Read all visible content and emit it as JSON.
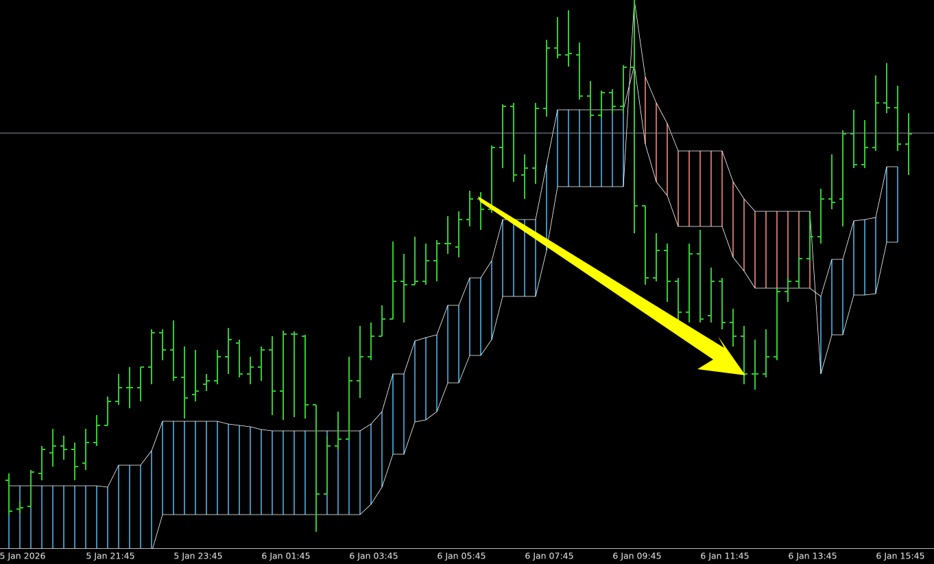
{
  "chart_data": {
    "type": "ohlc",
    "categories": [
      null,
      "5 Jan 2026",
      null,
      null,
      null,
      null,
      null,
      null,
      null,
      "5 Jan 21:45",
      null,
      null,
      null,
      null,
      null,
      null,
      null,
      "5 Jan 23:45",
      null,
      null,
      null,
      null,
      null,
      null,
      null,
      "6 Jan 01:45",
      null,
      null,
      null,
      null,
      null,
      null,
      null,
      "6 Jan 03:45",
      null,
      null,
      null,
      null,
      null,
      null,
      null,
      "6 Jan 05:45",
      null,
      null,
      null,
      null,
      null,
      null,
      null,
      "6 Jan 07:45",
      null,
      null,
      null,
      null,
      null,
      null,
      null,
      "6 Jan 09:45",
      null,
      null,
      null,
      null,
      null,
      null,
      null,
      "6 Jan 11:45",
      null,
      null,
      null,
      null,
      null,
      null,
      null,
      "6 Jan 13:45",
      null,
      null,
      null,
      null,
      null,
      null,
      null,
      "6 Jan 15:45",
      null
    ],
    "open": [
      100,
      58,
      62,
      110,
      140,
      150,
      145,
      125,
      155,
      180,
      215,
      235,
      235,
      265,
      315,
      290,
      250,
      225,
      240,
      245,
      280,
      300,
      255,
      265,
      290,
      230,
      313,
      310,
      210,
      80,
      150,
      160,
      245,
      280,
      310,
      335,
      390,
      385,
      390,
      420,
      445,
      440,
      480,
      510,
      495,
      585,
      645,
      545,
      555,
      642,
      730,
      720,
      720,
      660,
      632,
      665,
      645,
      702,
      500,
      395,
      435,
      390,
      345,
      430,
      340,
      390,
      330,
      310,
      255,
      255,
      280,
      375,
      390,
      423,
      455,
      510,
      510,
      605,
      560,
      585,
      650,
      643,
      590
    ],
    "high": [
      110,
      70,
      115,
      150,
      175,
      165,
      155,
      175,
      195,
      222,
      255,
      265,
      265,
      320,
      320,
      333,
      295,
      290,
      255,
      290,
      322,
      305,
      280,
      295,
      310,
      318,
      317,
      312,
      210,
      165,
      200,
      280,
      325,
      330,
      355,
      448,
      430,
      455,
      445,
      450,
      485,
      492,
      522,
      520,
      588,
      648,
      650,
      575,
      650,
      742,
      775,
      785,
      738,
      682,
      668,
      670,
      705,
      800,
      500,
      460,
      445,
      395,
      445,
      465,
      410,
      395,
      350,
      325,
      305,
      320,
      380,
      395,
      425,
      490,
      525,
      575,
      610,
      640,
      625,
      690,
      708,
      675,
      635
    ],
    "low": [
      50,
      52,
      60,
      100,
      120,
      130,
      100,
      115,
      150,
      180,
      210,
      205,
      215,
      240,
      275,
      245,
      190,
      215,
      230,
      240,
      255,
      250,
      240,
      245,
      195,
      188,
      192,
      190,
      25,
      80,
      145,
      160,
      220,
      275,
      310,
      335,
      330,
      385,
      385,
      390,
      430,
      425,
      470,
      465,
      490,
      555,
      535,
      510,
      532,
      630,
      715,
      703,
      655,
      628,
      628,
      635,
      635,
      460,
      385,
      390,
      360,
      330,
      330,
      330,
      330,
      320,
      295,
      240,
      232,
      250,
      275,
      360,
      380,
      420,
      445,
      495,
      470,
      555,
      555,
      580,
      635,
      580,
      545
    ],
    "close": [
      55,
      60,
      112,
      145,
      150,
      145,
      120,
      155,
      180,
      215,
      235,
      235,
      265,
      315,
      290,
      250,
      220,
      230,
      245,
      280,
      305,
      255,
      265,
      290,
      230,
      313,
      313,
      210,
      80,
      150,
      160,
      245,
      280,
      310,
      335,
      390,
      385,
      390,
      420,
      445,
      445,
      480,
      510,
      495,
      585,
      645,
      545,
      555,
      642,
      730,
      720,
      722,
      660,
      632,
      665,
      645,
      702,
      500,
      395,
      435,
      390,
      345,
      430,
      335,
      390,
      330,
      310,
      255,
      255,
      280,
      375,
      390,
      423,
      455,
      510,
      505,
      605,
      560,
      585,
      650,
      643,
      590,
      605
    ],
    "color": "#32cd32",
    "cloud": {
      "span_a": [
        92,
        92,
        92,
        92,
        92,
        92,
        92,
        92,
        92,
        90,
        122,
        122,
        122,
        143,
        186,
        186,
        186,
        186,
        186,
        186,
        182,
        180,
        178,
        174,
        172,
        172,
        172,
        172,
        172,
        172,
        172,
        172,
        172,
        182,
        200,
        255,
        255,
        303,
        308,
        312,
        355,
        355,
        395,
        395,
        420,
        480,
        480,
        480,
        480,
        560,
        640,
        640,
        640,
        640,
        640,
        640,
        640,
        705,
        590,
        535,
        515,
        470,
        470,
        470,
        470,
        470,
        425,
        405,
        380,
        380,
        380,
        380,
        380,
        380,
        368,
        422,
        422,
        478,
        480,
        483,
        557,
        557,
        null
      ],
      "span_b": [
        -5,
        -5,
        -5,
        -5,
        -5,
        -5,
        -5,
        -5,
        -5,
        -5,
        -5,
        -5,
        -5,
        -5,
        50,
        50,
        50,
        50,
        50,
        50,
        50,
        50,
        50,
        50,
        50,
        50,
        50,
        50,
        50,
        50,
        50,
        50,
        50,
        65,
        90,
        138,
        138,
        185,
        188,
        200,
        242,
        242,
        282,
        282,
        305,
        368,
        368,
        368,
        368,
        435,
        528,
        528,
        528,
        528,
        528,
        528,
        528,
        800,
        688,
        650,
        620,
        580,
        580,
        580,
        580,
        580,
        535,
        510,
        492,
        492,
        492,
        492,
        492,
        492,
        255,
        312,
        312,
        370,
        370,
        372,
        447,
        447,
        null
      ],
      "up_color": "#4fb3e8",
      "down_color": "#f4877c",
      "line_color": "#ffffff"
    },
    "price_line": 606,
    "price_line_color": "#8a95a5",
    "ylim": [
      0,
      800
    ]
  }
}
